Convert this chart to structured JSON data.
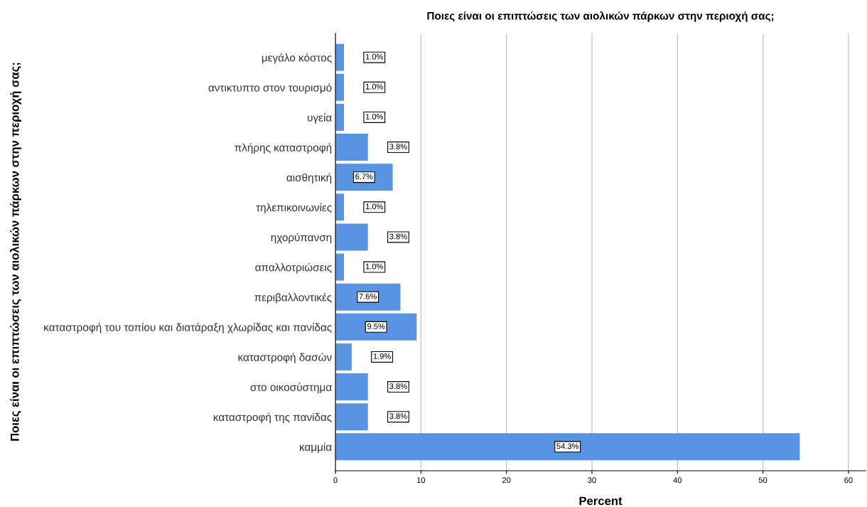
{
  "chart_data": {
    "type": "bar",
    "orientation": "horizontal",
    "title": "Ποιες είναι οι επιπτώσεις των αιολικών πάρκων στην περιοχή σας;",
    "xlabel": "Percent",
    "ylabel": "Ποιες είναι οι επιπτώσεις των αιολικών πάρκων στην περιοχή σας;",
    "categories": [
      "μεγάλο κόστος",
      "αντικτυπτο στον τουρισμό",
      "υγεία",
      "πλήρης καταστροφή",
      "αισθητική",
      "τηλεπικοινωνίες",
      "ηχορύπανση",
      "απαλλοτριώσεις",
      "περιβαλλοντικές",
      "καταστροφή του τοπίου και διατάραξη χλωρίδας και πανίδας",
      "καταστροφή δασών",
      "στο οικοσύστημα",
      "καταστροφή της πανίδας",
      "καμμία"
    ],
    "values": [
      1.0,
      1.0,
      1.0,
      3.8,
      6.7,
      1.0,
      3.8,
      1.0,
      7.6,
      9.5,
      1.9,
      3.8,
      3.8,
      54.3
    ],
    "value_labels": [
      "1.0%",
      "1.0%",
      "1.0%",
      "3.8%",
      "6.7%",
      "1.0%",
      "3.8%",
      "1.0%",
      "7.6%",
      "9.5%",
      "1.9%",
      "3.8%",
      "3.8%",
      "54.3%"
    ],
    "color": "#5994e3",
    "xlim": [
      0,
      62
    ],
    "xticks": [
      0,
      10,
      20,
      30,
      40,
      50,
      60
    ],
    "grid": "x",
    "legend": false
  }
}
